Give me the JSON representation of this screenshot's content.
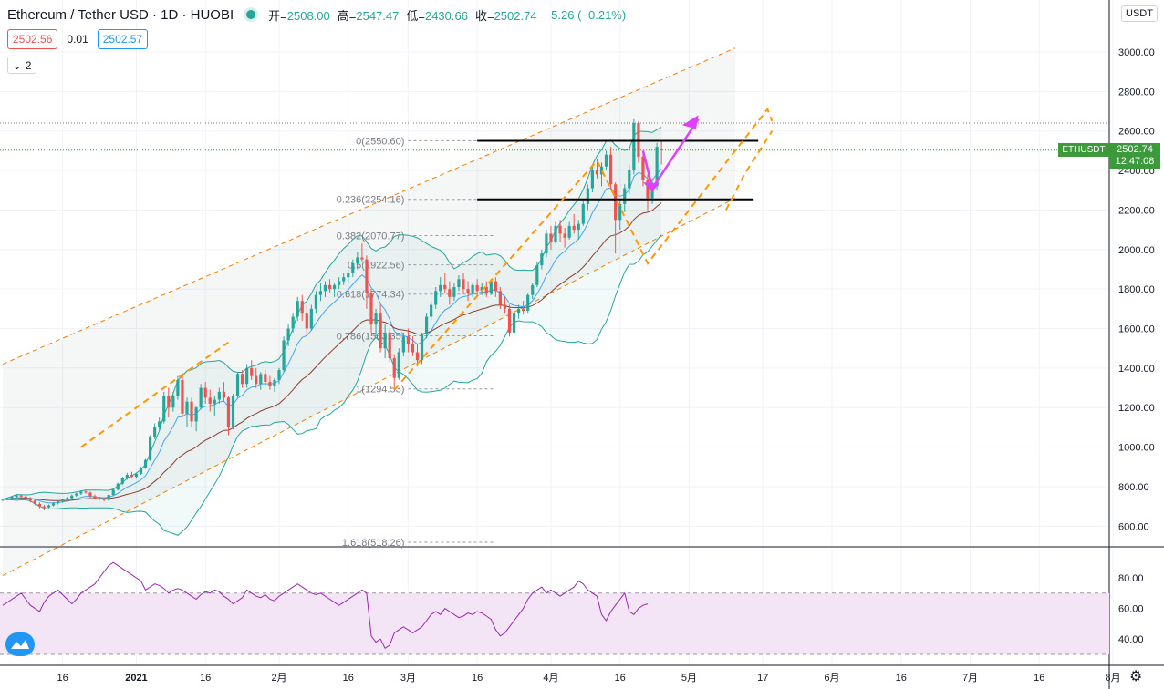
{
  "header": {
    "title": "Ethereum / Tether USD · 1D · HUOBI",
    "open_label": "开",
    "open": "2508.00",
    "high_label": "高",
    "high": "2547.47",
    "low_label": "低",
    "low": "2430.66",
    "close_label": "收",
    "close": "2502.74",
    "change": "−5.26 (−0.21%)"
  },
  "quote": {
    "bid": "2502.56",
    "spread": "0.01",
    "ask": "2502.57"
  },
  "indicators_button": {
    "count": "2"
  },
  "currency_badge": "USDT",
  "price_tag": {
    "symbol": "ETHUSDT",
    "price": "2502.74",
    "countdown": "12:47:08"
  },
  "colors": {
    "up": "#26a69a",
    "down": "#ef5350",
    "channel": "#f57c00",
    "projection": "#ff9800",
    "arrow": "#e040fb",
    "bollinger": "#26a69a",
    "ema_fast": "#42a5f5",
    "ema_slow": "#8d3b2e",
    "rsi": "#9c27b0",
    "rsi_band": "#f3e5f5"
  },
  "chart_data": [
    {
      "type": "candlestick",
      "title": "Ethereum / Tether USD · 1D · HUOBI",
      "y_axis": {
        "ticks": [
          3000,
          2800,
          2600,
          2400,
          2200,
          2000,
          1800,
          1600,
          1400,
          1200,
          1000,
          800,
          600
        ],
        "labels": [
          "3000.00",
          "2800.00",
          "2600.00",
          "2400.00",
          "2200.00",
          "2000.00",
          "1800.00",
          "1600.00",
          "1400.00",
          "1200.00",
          "1000.00",
          "800.00",
          "600.00"
        ],
        "range": [
          520,
          3200
        ]
      },
      "x_axis": {
        "labels": [
          "16",
          "2021",
          "16",
          "2月",
          "16",
          "3月",
          "16",
          "4月",
          "16",
          "5月",
          "17",
          "6月",
          "16",
          "7月",
          "16",
          "8月"
        ],
        "label_days": [
          -16,
          0,
          15,
          31,
          46,
          59,
          74,
          90,
          105,
          120,
          136,
          151,
          166,
          181,
          196,
          212
        ],
        "range_days": [
          -29,
          230
        ]
      },
      "candles": {
        "start_day": -29,
        "ohlc": [
          [
            735,
            740,
            725,
            737
          ],
          [
            737,
            745,
            730,
            741
          ],
          [
            741,
            752,
            735,
            748
          ],
          [
            748,
            760,
            742,
            756
          ],
          [
            756,
            760,
            745,
            750
          ],
          [
            750,
            754,
            735,
            742
          ],
          [
            742,
            748,
            720,
            730
          ],
          [
            730,
            735,
            705,
            712
          ],
          [
            712,
            720,
            690,
            700
          ],
          [
            700,
            708,
            680,
            695
          ],
          [
            695,
            710,
            690,
            705
          ],
          [
            705,
            720,
            700,
            716
          ],
          [
            716,
            730,
            710,
            725
          ],
          [
            725,
            740,
            718,
            735
          ],
          [
            735,
            748,
            728,
            742
          ],
          [
            742,
            760,
            735,
            755
          ],
          [
            755,
            770,
            748,
            765
          ],
          [
            765,
            780,
            758,
            775
          ],
          [
            775,
            785,
            765,
            770
          ],
          [
            770,
            775,
            745,
            752
          ],
          [
            752,
            760,
            735,
            740
          ],
          [
            740,
            748,
            730,
            737
          ],
          [
            737,
            745,
            725,
            733
          ],
          [
            733,
            760,
            728,
            758
          ],
          [
            758,
            790,
            752,
            785
          ],
          [
            785,
            820,
            780,
            815
          ],
          [
            815,
            850,
            808,
            845
          ],
          [
            845,
            870,
            835,
            860
          ],
          [
            860,
            875,
            840,
            850
          ],
          [
            850,
            870,
            840,
            865
          ],
          [
            865,
            900,
            860,
            895
          ],
          [
            895,
            940,
            890,
            935
          ],
          [
            935,
            1060,
            930,
            1050
          ],
          [
            1050,
            1120,
            1040,
            1100
          ],
          [
            1100,
            1150,
            1080,
            1130
          ],
          [
            1130,
            1280,
            1120,
            1260
          ],
          [
            1260,
            1300,
            1150,
            1200
          ],
          [
            1200,
            1280,
            1180,
            1260
          ],
          [
            1260,
            1360,
            1240,
            1340
          ],
          [
            1340,
            1360,
            1150,
            1170
          ],
          [
            1170,
            1250,
            1100,
            1230
          ],
          [
            1230,
            1250,
            1100,
            1130
          ],
          [
            1130,
            1210,
            1080,
            1200
          ],
          [
            1200,
            1320,
            1190,
            1300
          ],
          [
            1300,
            1330,
            1220,
            1250
          ],
          [
            1250,
            1290,
            1180,
            1220
          ],
          [
            1220,
            1260,
            1160,
            1240
          ],
          [
            1240,
            1300,
            1220,
            1280
          ],
          [
            1280,
            1330,
            1230,
            1250
          ],
          [
            1250,
            1260,
            1060,
            1100
          ],
          [
            1100,
            1270,
            1090,
            1260
          ],
          [
            1260,
            1380,
            1250,
            1370
          ],
          [
            1370,
            1390,
            1300,
            1320
          ],
          [
            1320,
            1420,
            1300,
            1400
          ],
          [
            1400,
            1440,
            1340,
            1360
          ],
          [
            1360,
            1400,
            1300,
            1320
          ],
          [
            1320,
            1380,
            1290,
            1370
          ],
          [
            1370,
            1390,
            1310,
            1330
          ],
          [
            1330,
            1360,
            1290,
            1310
          ],
          [
            1310,
            1350,
            1280,
            1340
          ],
          [
            1340,
            1400,
            1320,
            1390
          ],
          [
            1390,
            1560,
            1380,
            1540
          ],
          [
            1540,
            1620,
            1510,
            1600
          ],
          [
            1600,
            1680,
            1580,
            1660
          ],
          [
            1660,
            1760,
            1640,
            1740
          ],
          [
            1740,
            1770,
            1640,
            1680
          ],
          [
            1680,
            1720,
            1560,
            1600
          ],
          [
            1600,
            1720,
            1590,
            1700
          ],
          [
            1700,
            1790,
            1680,
            1770
          ],
          [
            1770,
            1830,
            1740,
            1790
          ],
          [
            1790,
            1840,
            1760,
            1820
          ],
          [
            1820,
            1850,
            1780,
            1800
          ],
          [
            1800,
            1830,
            1760,
            1820
          ],
          [
            1820,
            1860,
            1800,
            1840
          ],
          [
            1840,
            1880,
            1820,
            1860
          ],
          [
            1860,
            1900,
            1830,
            1880
          ],
          [
            1880,
            1950,
            1860,
            1930
          ],
          [
            1930,
            1990,
            1900,
            1960
          ],
          [
            1960,
            2030,
            1940,
            1950
          ],
          [
            1950,
            1970,
            1700,
            1780
          ],
          [
            1780,
            1800,
            1580,
            1620
          ],
          [
            1620,
            1700,
            1560,
            1680
          ],
          [
            1680,
            1720,
            1480,
            1500
          ],
          [
            1500,
            1620,
            1450,
            1580
          ],
          [
            1580,
            1600,
            1430,
            1450
          ],
          [
            1450,
            1470,
            1300,
            1350
          ],
          [
            1350,
            1500,
            1340,
            1480
          ],
          [
            1480,
            1580,
            1460,
            1560
          ],
          [
            1560,
            1600,
            1480,
            1520
          ],
          [
            1520,
            1560,
            1460,
            1480
          ],
          [
            1480,
            1520,
            1410,
            1440
          ],
          [
            1440,
            1580,
            1420,
            1570
          ],
          [
            1570,
            1680,
            1550,
            1660
          ],
          [
            1660,
            1740,
            1640,
            1720
          ],
          [
            1720,
            1810,
            1700,
            1790
          ],
          [
            1790,
            1860,
            1760,
            1820
          ],
          [
            1820,
            1880,
            1780,
            1800
          ],
          [
            1800,
            1840,
            1720,
            1760
          ],
          [
            1760,
            1830,
            1740,
            1810
          ],
          [
            1810,
            1870,
            1790,
            1850
          ],
          [
            1850,
            1880,
            1780,
            1800
          ],
          [
            1800,
            1840,
            1740,
            1780
          ],
          [
            1780,
            1830,
            1760,
            1820
          ],
          [
            1820,
            1850,
            1770,
            1790
          ],
          [
            1790,
            1830,
            1770,
            1810
          ],
          [
            1810,
            1840,
            1760,
            1780
          ],
          [
            1780,
            1850,
            1770,
            1840
          ],
          [
            1840,
            1860,
            1760,
            1790
          ],
          [
            1790,
            1810,
            1700,
            1720
          ],
          [
            1720,
            1760,
            1680,
            1700
          ],
          [
            1700,
            1720,
            1560,
            1580
          ],
          [
            1580,
            1700,
            1550,
            1680
          ],
          [
            1680,
            1720,
            1650,
            1700
          ],
          [
            1700,
            1740,
            1670,
            1690
          ],
          [
            1690,
            1780,
            1680,
            1770
          ],
          [
            1770,
            1830,
            1750,
            1820
          ],
          [
            1820,
            1940,
            1810,
            1920
          ],
          [
            1920,
            2000,
            1900,
            1980
          ],
          [
            1980,
            2100,
            1960,
            2080
          ],
          [
            2080,
            2120,
            2000,
            2040
          ],
          [
            2040,
            2140,
            2030,
            2120
          ],
          [
            2120,
            2150,
            2040,
            2080
          ],
          [
            2080,
            2110,
            2010,
            2060
          ],
          [
            2060,
            2140,
            2050,
            2120
          ],
          [
            2120,
            2180,
            2080,
            2100
          ],
          [
            2100,
            2150,
            2050,
            2130
          ],
          [
            2130,
            2250,
            2120,
            2230
          ],
          [
            2230,
            2330,
            2200,
            2310
          ],
          [
            2310,
            2420,
            2290,
            2400
          ],
          [
            2400,
            2460,
            2360,
            2380
          ],
          [
            2380,
            2440,
            2320,
            2420
          ],
          [
            2420,
            2500,
            2400,
            2480
          ],
          [
            2480,
            2520,
            2300,
            2330
          ],
          [
            2330,
            2340,
            1980,
            2150
          ],
          [
            2150,
            2250,
            2100,
            2230
          ],
          [
            2230,
            2330,
            2190,
            2310
          ],
          [
            2310,
            2430,
            2280,
            2400
          ],
          [
            2400,
            2660,
            2380,
            2640
          ],
          [
            2640,
            2650,
            2440,
            2470
          ],
          [
            2470,
            2500,
            2320,
            2350
          ],
          [
            2350,
            2380,
            2200,
            2260
          ],
          [
            2260,
            2360,
            2230,
            2320
          ],
          [
            2320,
            2540,
            2300,
            2520
          ],
          [
            2508,
            2547,
            2430,
            2503
          ]
        ]
      },
      "overlays": {
        "fibonacci": [
          {
            "label": "0(2550.60)",
            "value": 2550.6
          },
          {
            "label": "0.236(2254.16)",
            "value": 2254.16
          },
          {
            "label": "0.382(2070.77)",
            "value": 2070.77
          },
          {
            "label": "0.5(1922.56)",
            "value": 1922.56
          },
          {
            "label": "0.618(1774.34)",
            "value": 1774.34
          },
          {
            "label": "0.786(1563.35)",
            "value": 1563.35
          },
          {
            "label": "1(1294.53)",
            "value": 1294.53
          },
          {
            "label": "1.618(518.26)",
            "value": 518.26
          }
        ],
        "support_resistance": [
          {
            "value": 2550,
            "day_range": [
              74,
              135
            ]
          },
          {
            "value": 2254,
            "day_range": [
              74,
              134
            ]
          }
        ],
        "channel": {
          "upper": [
            [
              -29,
              1420
            ],
            [
              130,
              3020
            ]
          ],
          "lower": [
            [
              -29,
              350
            ],
            [
              130,
              2260
            ]
          ]
        }
      }
    },
    {
      "type": "line",
      "title": "RSI",
      "y_axis": {
        "ticks": [
          80,
          60,
          40
        ],
        "labels": [
          "80.00",
          "60.00",
          "40.00"
        ],
        "band": [
          30,
          70
        ]
      },
      "values": [
        62,
        64,
        66,
        68,
        70,
        66,
        62,
        60,
        58,
        64,
        68,
        70,
        72,
        69,
        66,
        63,
        66,
        70,
        72,
        74,
        76,
        80,
        84,
        88,
        90,
        88,
        86,
        84,
        82,
        80,
        78,
        72,
        74,
        76,
        75,
        73,
        70,
        72,
        73,
        72,
        70,
        68,
        66,
        69,
        71,
        70,
        72,
        71,
        68,
        66,
        63,
        65,
        67,
        72,
        70,
        68,
        67,
        69,
        66,
        65,
        68,
        70,
        72,
        74,
        76,
        74,
        72,
        70,
        69,
        70,
        68,
        66,
        64,
        62,
        64,
        66,
        68,
        70,
        72,
        70,
        42,
        38,
        40,
        34,
        36,
        44,
        46,
        48,
        46,
        44,
        46,
        48,
        52,
        56,
        58,
        56,
        60,
        58,
        56,
        54,
        55,
        57,
        56,
        58,
        57,
        55,
        53,
        46,
        42,
        44,
        48,
        52,
        56,
        60,
        66,
        70,
        72,
        74,
        70,
        72,
        70,
        68,
        70,
        72,
        74,
        78,
        76,
        72,
        70,
        68,
        56,
        52,
        58,
        62,
        66,
        70,
        58,
        56,
        60,
        62,
        63
      ]
    }
  ]
}
